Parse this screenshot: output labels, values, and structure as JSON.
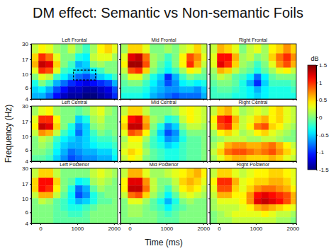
{
  "chart_data": {
    "type": "heatmap",
    "title": "DM effect: Semantic vs Non-semantic Foils",
    "x_label": "Time (ms)",
    "y_label": "Frequency (Hz)",
    "xlim": [
      -250,
      2100
    ],
    "xticks": [
      0,
      1000,
      2000
    ],
    "ylim": [
      4,
      30
    ],
    "yticks": [
      4,
      6,
      10,
      17,
      30
    ],
    "log": "y",
    "time_bins": [
      -250,
      -50,
      150,
      350,
      550,
      750,
      950,
      1150,
      1350,
      1550,
      1750,
      1950,
      2100
    ],
    "freq_bins": [
      30,
      21,
      16,
      12.5,
      10,
      8,
      6.3,
      5,
      4
    ],
    "colorbar": {
      "label": "dB",
      "range": [
        -1.5,
        1.5
      ],
      "ticks": [
        1.5,
        1,
        0.5,
        0,
        -0.5,
        -1,
        -1.5
      ]
    },
    "panels": [
      {
        "title": "Left Frontal",
        "roi": {
          "x": [
            900,
            1500
          ],
          "y": [
            8,
            11.5
          ]
        },
        "cells": [
          [
            0.2,
            0.4,
            0.3,
            0.1,
            0,
            0.2,
            0,
            -0.2,
            0.1,
            0.4,
            0.5,
            0.3
          ],
          [
            0.5,
            1.0,
            0.8,
            0.3,
            0,
            0,
            -0.3,
            -0.4,
            0.2,
            0.3,
            0.3,
            0.1
          ],
          [
            0.6,
            1.3,
            1.2,
            0.5,
            0,
            -0.2,
            -0.6,
            -0.5,
            0,
            0.1,
            0,
            0
          ],
          [
            0.3,
            1.0,
            0.9,
            0.3,
            -0.2,
            -0.3,
            -0.5,
            -0.6,
            -0.4,
            -0.2,
            0,
            0
          ],
          [
            0,
            0.3,
            0.2,
            -0.2,
            -0.4,
            -0.6,
            -0.8,
            -0.9,
            -0.7,
            -0.5,
            -0.4,
            -0.2
          ],
          [
            -0.3,
            0,
            -0.2,
            -0.6,
            -0.8,
            -1.0,
            -1.1,
            -1.2,
            -1.1,
            -1.0,
            -0.9,
            -0.6
          ],
          [
            -0.5,
            -0.4,
            -0.6,
            -0.9,
            -1.1,
            -1.3,
            -1.3,
            -1.4,
            -1.4,
            -1.3,
            -1.2,
            -0.9
          ],
          [
            -0.6,
            -0.6,
            -0.8,
            -1.1,
            -1.3,
            -1.4,
            -1.4,
            -1.5,
            -1.5,
            -1.4,
            -1.3,
            -1.0
          ]
        ]
      },
      {
        "title": "Mid Frontal",
        "cells": [
          [
            0.1,
            0.5,
            0.5,
            0.3,
            0,
            0,
            0.1,
            0,
            0.2,
            0.3,
            0.5,
            0.2
          ],
          [
            0.3,
            1.2,
            1.3,
            0.8,
            0.1,
            0,
            -0.2,
            0,
            0.4,
            0.9,
            0.7,
            0.3
          ],
          [
            0.4,
            1.4,
            1.4,
            0.9,
            0.1,
            -0.1,
            -0.3,
            0,
            0.4,
            1.0,
            0.6,
            0.2
          ],
          [
            0.2,
            0.9,
            1.0,
            0.5,
            0,
            -0.2,
            -0.4,
            -0.2,
            0.1,
            0.4,
            0.3,
            0
          ],
          [
            0,
            0.3,
            0.3,
            0,
            -0.3,
            -0.5,
            -1.0,
            -0.6,
            -0.2,
            0,
            -0.1,
            -0.1
          ],
          [
            -0.1,
            0,
            0,
            -0.2,
            -0.4,
            -0.6,
            -0.9,
            -0.7,
            -0.4,
            -0.3,
            -0.4,
            -0.3
          ],
          [
            -0.2,
            -0.2,
            -0.2,
            -0.3,
            -0.5,
            -0.6,
            -0.7,
            -0.7,
            -0.6,
            -0.6,
            -0.7,
            -0.5
          ],
          [
            -0.3,
            -0.3,
            -0.3,
            -0.4,
            -0.6,
            -0.7,
            -0.8,
            -0.9,
            -0.8,
            -0.8,
            -0.8,
            -0.6
          ]
        ]
      },
      {
        "title": "Right Frontal",
        "cells": [
          [
            0.2,
            0.6,
            0.5,
            0.3,
            0,
            0.2,
            0.3,
            0.1,
            0.4,
            0.5,
            0.7,
            0.5
          ],
          [
            0.3,
            1.1,
            1.1,
            0.6,
            0.1,
            0.2,
            0,
            0.1,
            0.5,
            0.8,
            1.0,
            0.7
          ],
          [
            0.3,
            1.2,
            1.0,
            0.5,
            0.1,
            0,
            -0.2,
            0,
            0.3,
            0.7,
            0.9,
            0.6
          ],
          [
            0.1,
            0.6,
            0.5,
            0.2,
            0,
            -0.1,
            -0.3,
            -0.1,
            0.1,
            0.3,
            0.4,
            0.2
          ],
          [
            0,
            0.2,
            0.1,
            -0.1,
            -0.2,
            -0.4,
            -0.8,
            -0.4,
            -0.1,
            0,
            0,
            0
          ],
          [
            -0.1,
            0,
            0,
            -0.1,
            -0.3,
            -0.6,
            -1.0,
            -0.5,
            -0.2,
            -0.2,
            -0.2,
            -0.1
          ],
          [
            -0.2,
            -0.1,
            -0.1,
            -0.2,
            -0.3,
            -0.4,
            -0.6,
            -0.4,
            -0.3,
            -0.3,
            -0.3,
            -0.2
          ],
          [
            -0.2,
            -0.2,
            -0.2,
            -0.3,
            -0.3,
            -0.4,
            -0.5,
            -0.4,
            -0.3,
            -0.3,
            -0.3,
            -0.3
          ]
        ]
      },
      {
        "title": "Left Central",
        "cells": [
          [
            0.1,
            0.3,
            0.4,
            0.1,
            0,
            0,
            -0.1,
            0,
            0.2,
            0.3,
            0.1,
            0
          ],
          [
            0.3,
            1.0,
            1.0,
            0.4,
            0,
            0,
            -0.5,
            -0.3,
            0.1,
            0.2,
            0,
            0
          ],
          [
            0.4,
            1.3,
            1.2,
            0.5,
            0,
            -0.3,
            -0.7,
            -0.5,
            0,
            0.1,
            0,
            0
          ],
          [
            0.2,
            0.7,
            0.6,
            0.2,
            -0.2,
            -0.4,
            -0.8,
            -0.5,
            -0.2,
            0,
            -0.1,
            0
          ],
          [
            0,
            0.2,
            0.1,
            -0.2,
            -0.4,
            -0.5,
            -0.6,
            -0.5,
            -0.3,
            -0.2,
            -0.2,
            -0.1
          ],
          [
            0,
            0.1,
            0,
            -0.3,
            -0.5,
            -0.6,
            -0.6,
            -0.5,
            -0.4,
            -0.3,
            -0.3,
            -0.2
          ],
          [
            0,
            0,
            -0.1,
            -0.4,
            -0.6,
            -0.8,
            -0.7,
            -0.6,
            -0.6,
            -0.5,
            -0.5,
            -0.3
          ],
          [
            -0.1,
            -0.1,
            -0.2,
            -0.5,
            -0.7,
            -0.9,
            -0.8,
            -0.7,
            -0.7,
            -0.6,
            -0.6,
            -0.4
          ]
        ]
      },
      {
        "title": "Mid Central",
        "cells": [
          [
            0.2,
            0.5,
            0.5,
            0.2,
            0,
            0,
            0,
            0.1,
            0.3,
            0.4,
            0.3,
            0.2
          ],
          [
            0.4,
            1.1,
            1.2,
            0.6,
            0.1,
            0,
            -0.3,
            -0.2,
            0.2,
            0.4,
            0.3,
            0.2
          ],
          [
            0.5,
            1.3,
            1.3,
            0.7,
            0,
            -0.3,
            -0.7,
            -0.5,
            0,
            0.2,
            0.2,
            0.1
          ],
          [
            0.3,
            0.9,
            0.8,
            0.4,
            -0.1,
            -0.5,
            -0.9,
            -0.7,
            -0.2,
            0,
            0,
            0
          ],
          [
            0.1,
            0.4,
            0.4,
            0.1,
            -0.2,
            -0.4,
            -0.7,
            -0.6,
            -0.3,
            -0.1,
            -0.1,
            0
          ],
          [
            0.2,
            0.3,
            0.3,
            0,
            -0.2,
            -0.3,
            -0.5,
            -0.4,
            -0.2,
            -0.1,
            -0.1,
            0
          ],
          [
            0.3,
            0.5,
            0.4,
            0.1,
            -0.1,
            -0.2,
            -0.3,
            -0.3,
            -0.2,
            -0.1,
            -0.1,
            0
          ],
          [
            0.2,
            0.4,
            0.3,
            0,
            -0.1,
            -0.2,
            -0.3,
            -0.3,
            -0.2,
            -0.1,
            -0.1,
            0
          ]
        ]
      },
      {
        "title": "Right Central",
        "cells": [
          [
            0.2,
            0.5,
            0.6,
            0.3,
            0.1,
            0.2,
            0.3,
            0.2,
            0.4,
            0.5,
            0.3,
            0.2
          ],
          [
            0.4,
            1.0,
            1.1,
            0.6,
            0.2,
            0.3,
            0.5,
            0.6,
            0.4,
            0.5,
            0.3,
            0.2
          ],
          [
            0.3,
            0.9,
            1.0,
            0.5,
            0.2,
            0.4,
            0.8,
            0.9,
            0.5,
            0.4,
            0.2,
            0.1
          ],
          [
            0.1,
            0.4,
            0.5,
            0.3,
            0.1,
            0.2,
            0.4,
            0.5,
            0.3,
            0.2,
            0.1,
            0
          ],
          [
            0,
            0.1,
            0.2,
            0.2,
            0.2,
            0.1,
            0.1,
            0.2,
            0.2,
            0.1,
            0,
            0
          ],
          [
            0.1,
            0.3,
            0.6,
            0.7,
            0.7,
            0.6,
            0.6,
            0.7,
            0.8,
            0.6,
            0.4,
            0.2
          ],
          [
            0.2,
            0.5,
            0.8,
            0.9,
            0.9,
            0.8,
            0.7,
            0.8,
            0.9,
            0.7,
            0.5,
            0.3
          ],
          [
            0.1,
            0.3,
            0.5,
            0.6,
            0.6,
            0.5,
            0.5,
            0.5,
            0.6,
            0.5,
            0.3,
            0.2
          ]
        ]
      },
      {
        "title": "Left Posterior",
        "cells": [
          [
            0.2,
            0.5,
            0.5,
            0.2,
            0,
            0,
            0,
            0,
            0.2,
            0.3,
            0.2,
            0.1
          ],
          [
            0.5,
            1.1,
            1.1,
            0.5,
            0,
            -0.1,
            -0.4,
            -0.3,
            0.1,
            0.2,
            0.1,
            0
          ],
          [
            0.5,
            1.1,
            1.0,
            0.4,
            0,
            -0.3,
            -0.8,
            -0.6,
            -0.1,
            0.1,
            0,
            0
          ],
          [
            0.2,
            0.6,
            0.6,
            0.2,
            -0.1,
            -0.4,
            -0.9,
            -0.7,
            -0.3,
            -0.1,
            0,
            0
          ],
          [
            0,
            0.2,
            0.1,
            -0.1,
            -0.2,
            -0.4,
            -0.6,
            -0.5,
            -0.3,
            -0.1,
            -0.1,
            0
          ],
          [
            0,
            0,
            0,
            -0.1,
            -0.2,
            -0.3,
            -0.3,
            -0.2,
            -0.1,
            0,
            0,
            0
          ],
          [
            0,
            0,
            0,
            -0.1,
            -0.1,
            -0.2,
            -0.2,
            -0.1,
            0,
            0,
            0,
            0
          ],
          [
            0,
            0,
            0,
            -0.1,
            -0.1,
            -0.1,
            -0.1,
            -0.1,
            0,
            0,
            0,
            0
          ]
        ]
      },
      {
        "title": "Mid Posterior",
        "cells": [
          [
            0.2,
            0.6,
            0.6,
            0.3,
            0.1,
            0.1,
            0.2,
            0.3,
            0.4,
            0.5,
            0.6,
            0.4
          ],
          [
            0.4,
            1.2,
            1.2,
            0.7,
            0.2,
            0,
            0,
            0.2,
            0.5,
            0.6,
            0.5,
            0.3
          ],
          [
            0.4,
            1.3,
            1.3,
            0.8,
            0.2,
            0,
            -0.2,
            0.1,
            0.4,
            0.5,
            0.4,
            0.2
          ],
          [
            0.2,
            0.8,
            0.9,
            0.5,
            0.1,
            -0.1,
            -0.4,
            -0.1,
            0.2,
            0.3,
            0.2,
            0.1
          ],
          [
            0,
            0.3,
            0.3,
            0.1,
            -0.1,
            -0.3,
            -0.6,
            -0.3,
            0,
            0.1,
            0,
            0
          ],
          [
            0,
            0.1,
            0.1,
            0,
            -0.1,
            -0.2,
            -0.4,
            -0.2,
            -0.1,
            0,
            0,
            0
          ],
          [
            0,
            0.1,
            0.1,
            0,
            0,
            -0.1,
            -0.2,
            -0.1,
            0,
            0,
            0,
            0
          ],
          [
            0,
            0,
            0,
            0,
            0,
            -0.1,
            -0.1,
            -0.1,
            0,
            0,
            0,
            0
          ]
        ]
      },
      {
        "title": "Right Posterior",
        "cells": [
          [
            0.2,
            0.5,
            0.5,
            0.3,
            0.2,
            0.3,
            0.4,
            0.4,
            0.5,
            0.5,
            0.4,
            0.3
          ],
          [
            0.4,
            1.0,
            1.0,
            0.6,
            0.3,
            0.4,
            0.5,
            0.5,
            0.6,
            0.6,
            0.5,
            0.3
          ],
          [
            0.3,
            0.9,
            0.9,
            0.5,
            0.3,
            0.5,
            0.7,
            0.8,
            0.8,
            0.7,
            0.6,
            0.4
          ],
          [
            0.2,
            0.6,
            0.6,
            0.4,
            0.4,
            0.7,
            1.1,
            1.2,
            1.1,
            1.0,
            0.9,
            0.6
          ],
          [
            0.1,
            0.3,
            0.3,
            0.3,
            0.4,
            0.7,
            1.2,
            1.3,
            1.2,
            1.1,
            0.9,
            0.6
          ],
          [
            0.1,
            0.2,
            0.2,
            0.2,
            0.3,
            0.4,
            0.6,
            0.7,
            0.6,
            0.5,
            0.4,
            0.3
          ],
          [
            0,
            0.1,
            0.2,
            0.3,
            0.3,
            0.3,
            0.3,
            0.4,
            0.3,
            0.2,
            0.2,
            0.1
          ],
          [
            0,
            0.1,
            0.1,
            0.2,
            0.2,
            0.2,
            0.2,
            0.2,
            0.2,
            0.1,
            0.1,
            0
          ]
        ]
      }
    ]
  }
}
